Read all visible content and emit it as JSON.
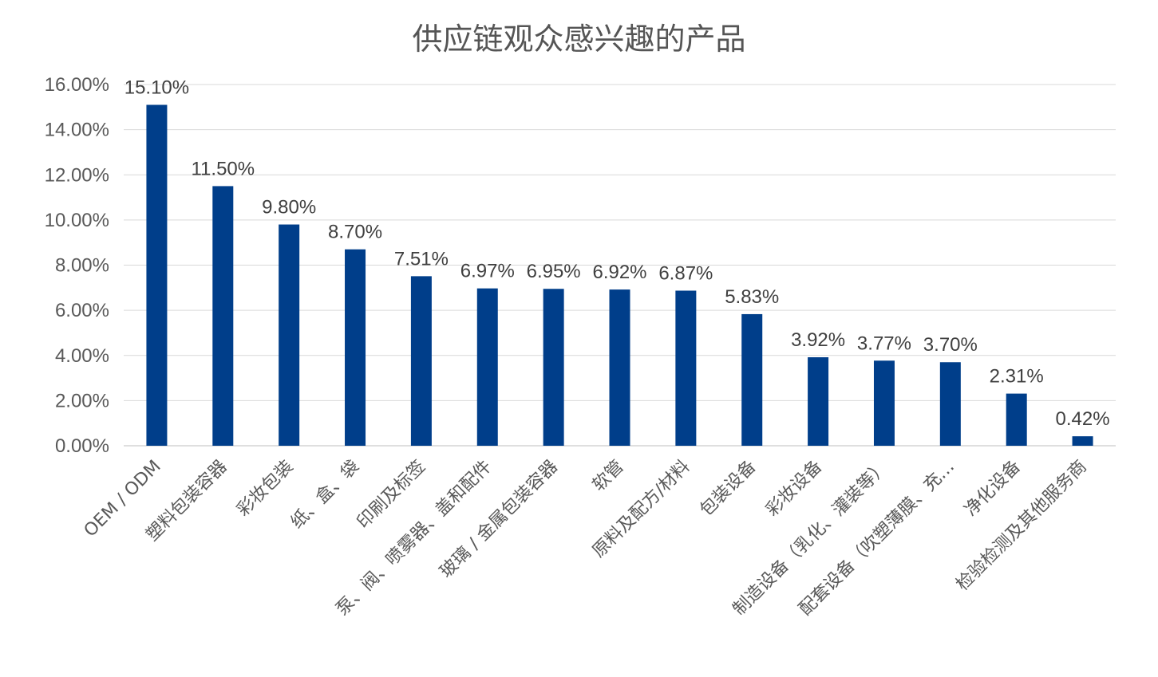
{
  "chart_data": {
    "type": "bar",
    "title": "供应链观众感兴趣的产品",
    "xlabel": "",
    "ylabel": "",
    "ylim": [
      0,
      16
    ],
    "y_ticks": [
      "0.00%",
      "2.00%",
      "4.00%",
      "6.00%",
      "8.00%",
      "10.00%",
      "12.00%",
      "14.00%",
      "16.00%"
    ],
    "grid": true,
    "legend": "none",
    "bar_color": "#003E8A",
    "categories": [
      "OEM / ODM",
      "塑料包装容器",
      "彩妆包装",
      "纸、盒、袋",
      "印刷及标签",
      "泵、阀、喷雾器、盖和配件",
      "玻璃 / 金属包装容器",
      "软管",
      "原料及配方/材料",
      "包装设备",
      "彩妆设备",
      "制造设备（乳化、灌装等）",
      "配套设备（吹塑薄膜、充…",
      "净化设备",
      "检验检测及其他服务商"
    ],
    "values": [
      15.1,
      11.5,
      9.8,
      8.7,
      7.51,
      6.97,
      6.95,
      6.92,
      6.87,
      5.83,
      3.92,
      3.77,
      3.7,
      2.31,
      0.42
    ],
    "data_labels": [
      "15.10%",
      "11.50%",
      "9.80%",
      "8.70%",
      "7.51%",
      "6.97%",
      "6.95%",
      "6.92%",
      "6.87%",
      "5.83%",
      "3.92%",
      "3.77%",
      "3.70%",
      "2.31%",
      "0.42%"
    ]
  }
}
